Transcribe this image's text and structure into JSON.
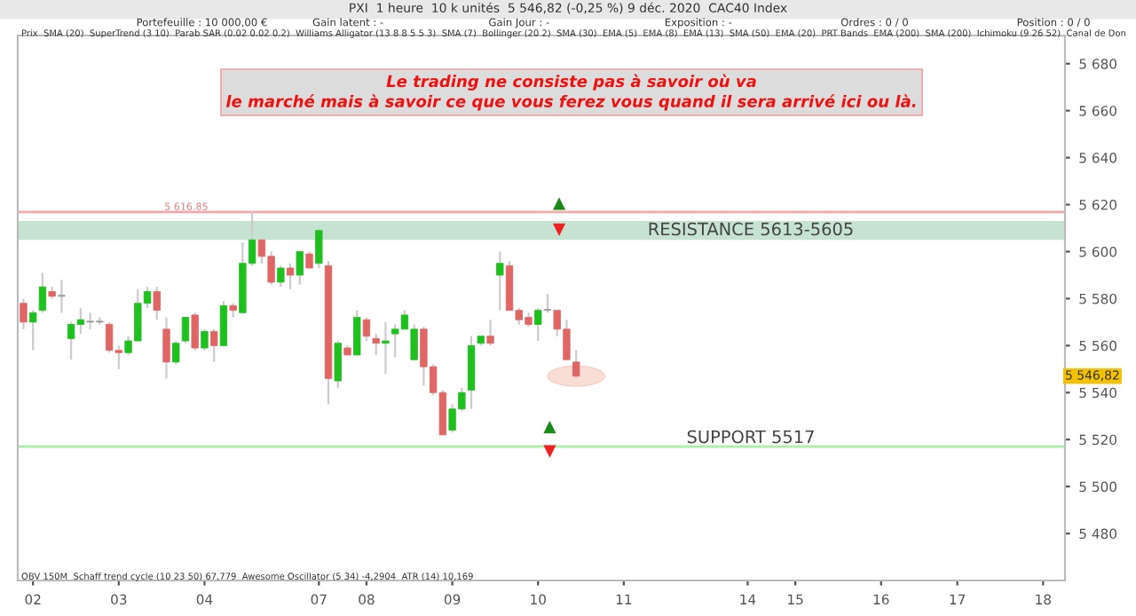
{
  "chart_data": {
    "type": "candlestick",
    "title": "PXI  1 heure  10 k unités  5 546,82 (-0,25 %) 9 déc. 2020  CAC40 Index",
    "categories": [
      null,
      "02",
      null,
      null,
      null,
      null,
      null,
      null,
      null,
      null,
      "03",
      null,
      null,
      null,
      null,
      null,
      null,
      null,
      null,
      "04",
      null,
      null,
      null,
      null,
      null,
      null,
      null,
      null,
      null,
      null,
      null,
      "07",
      null,
      null,
      null,
      null,
      "08",
      null,
      null,
      null,
      null,
      null,
      null,
      null,
      null,
      "09",
      null,
      null,
      null,
      null,
      null,
      null,
      null,
      null,
      "10",
      null,
      null,
      null,
      null,
      null,
      null,
      null,
      null,
      "11",
      null,
      null,
      null,
      null,
      null,
      null,
      null,
      null,
      null,
      null,
      null,
      null,
      "14",
      null,
      null,
      null,
      null,
      "15",
      null,
      null,
      null,
      null,
      null,
      null,
      null,
      null,
      "16",
      null,
      null,
      null,
      null,
      null,
      null,
      null,
      "17",
      null,
      null,
      null,
      null,
      null,
      null,
      null,
      null,
      "18",
      null,
      null
    ],
    "ohlc": [
      [
        5578,
        5580,
        5567,
        5570
      ],
      [
        5570,
        5575,
        5558,
        5574
      ],
      [
        5575,
        5591,
        5574,
        5585
      ],
      [
        5583,
        5585,
        5580,
        5581
      ],
      [
        5581,
        5588,
        5574,
        5581
      ],
      [
        5563,
        5570,
        5554,
        5569
      ],
      [
        5569,
        5576,
        5565,
        5571
      ],
      [
        5570,
        5574,
        5567,
        5570
      ],
      [
        5570,
        5572,
        5569,
        5570
      ],
      [
        5569,
        5570,
        5557,
        5558
      ],
      [
        5558,
        5560,
        5550,
        5557
      ],
      [
        5557,
        5564,
        5556,
        5562
      ],
      [
        5562,
        5584,
        5562,
        5578
      ],
      [
        5578,
        5585,
        5576,
        5583
      ],
      [
        5583,
        5585,
        5571,
        5575
      ],
      [
        5567,
        5572,
        5546,
        5553
      ],
      [
        5553,
        5562,
        5552,
        5561
      ],
      [
        5562,
        5572,
        5561,
        5572
      ],
      [
        5573,
        5574,
        5558,
        5559
      ],
      [
        5559,
        5567,
        5558,
        5566
      ],
      [
        5566,
        5567,
        5553,
        5560
      ],
      [
        5560,
        5579,
        5560,
        5577
      ],
      [
        5577,
        5578,
        5572,
        5575
      ],
      [
        5574,
        5604,
        5574,
        5595
      ],
      [
        5595,
        5617,
        5594,
        5605
      ],
      [
        5605,
        5605,
        5595,
        5598
      ],
      [
        5598,
        5600,
        5586,
        5587
      ],
      [
        5587,
        5594,
        5585,
        5593
      ],
      [
        5593,
        5595,
        5584,
        5590
      ],
      [
        5590,
        5600,
        5586,
        5600
      ],
      [
        5599,
        5600,
        5593,
        5593
      ],
      [
        5595,
        5610,
        5593,
        5609
      ],
      [
        5594,
        5596,
        5535,
        5546
      ],
      [
        5545,
        5562,
        5542,
        5561
      ],
      [
        5559,
        5560,
        5556,
        5556
      ],
      [
        5556,
        5575,
        5556,
        5572
      ],
      [
        5571,
        5572,
        5562,
        5564
      ],
      [
        5563,
        5565,
        5556,
        5561
      ],
      [
        5561,
        5570,
        5548,
        5562
      ],
      [
        5565,
        5569,
        5555,
        5567
      ],
      [
        5567,
        5575,
        5567,
        5573
      ],
      [
        5554,
        5569,
        5554,
        5567
      ],
      [
        5567,
        5568,
        5543,
        5551
      ],
      [
        5551,
        5552,
        5539,
        5540
      ],
      [
        5540,
        5541,
        5522,
        5522
      ],
      [
        5524,
        5535,
        5523,
        5533
      ],
      [
        5533,
        5542,
        5532,
        5540
      ],
      [
        5541,
        5564,
        5533,
        5560
      ],
      [
        5561,
        5564,
        5560,
        5564
      ],
      [
        5564,
        5571,
        5560,
        5561
      ],
      [
        5590,
        5600,
        5575,
        5595
      ],
      [
        5594,
        5596,
        5575,
        5575
      ],
      [
        5575,
        5576,
        5569,
        5571
      ],
      [
        5572,
        5574,
        5568,
        5569
      ],
      [
        5569,
        5576,
        5562,
        5575
      ],
      [
        5575,
        5582,
        5574,
        5575
      ],
      [
        5575,
        5575,
        5564,
        5567
      ],
      [
        5567,
        5571,
        5554,
        5554
      ],
      [
        5553,
        5558,
        5546,
        5547
      ],
      null,
      null,
      null,
      null,
      null,
      null,
      null,
      null,
      null,
      null,
      null,
      null,
      null,
      null,
      null,
      null,
      null,
      null,
      null,
      null,
      null,
      null,
      null,
      null,
      null,
      null,
      null,
      null,
      null,
      null,
      null,
      null,
      null,
      null,
      null,
      null,
      null,
      null,
      null,
      null,
      null,
      null,
      null,
      null,
      null,
      null,
      null,
      null,
      null,
      null,
      null
    ],
    "colors": [
      "#e06666",
      "#1fbf1f",
      "#1fbf1f",
      "#e06666",
      "#999999",
      "#1fbf1f",
      "#1fbf1f",
      "#999999",
      "#999999",
      "#e06666",
      "#e06666",
      "#1fbf1f",
      "#1fbf1f",
      "#1fbf1f",
      "#e06666",
      "#e06666",
      "#1fbf1f",
      "#1fbf1f",
      "#e06666",
      "#1fbf1f",
      "#e06666",
      "#1fbf1f",
      "#e06666",
      "#1fbf1f",
      "#1fbf1f",
      "#e06666",
      "#e06666",
      "#1fbf1f",
      "#e06666",
      "#1fbf1f",
      "#e06666",
      "#1fbf1f",
      "#e06666",
      "#1fbf1f",
      "#e06666",
      "#1fbf1f",
      "#e06666",
      "#e06666",
      "#1fbf1f",
      "#1fbf1f",
      "#1fbf1f",
      "#1fbf1f",
      "#e06666",
      "#e06666",
      "#e06666",
      "#1fbf1f",
      "#1fbf1f",
      "#1fbf1f",
      "#1fbf1f",
      "#e06666",
      "#1fbf1f",
      "#e06666",
      "#e06666",
      "#e06666",
      "#1fbf1f",
      "#999999",
      "#e06666",
      "#e06666",
      "#e06666",
      null,
      null,
      null,
      null,
      null,
      null,
      null,
      null,
      null,
      null,
      null,
      null,
      null,
      null,
      null,
      null,
      null,
      null,
      null,
      null,
      null,
      null,
      null,
      null,
      null,
      null,
      null,
      null,
      null,
      null,
      null,
      null,
      null,
      null,
      null,
      null,
      null,
      null,
      null,
      null,
      null,
      null,
      null,
      null,
      null,
      null,
      null,
      null,
      null,
      null,
      null
    ],
    "ylim": [
      5460,
      5692
    ],
    "yticks": [
      {
        "value": 5480,
        "label": "5 480"
      },
      {
        "value": 5500,
        "label": "5 500"
      },
      {
        "value": 5520,
        "label": "5 520"
      },
      {
        "value": 5540,
        "label": "5 540"
      },
      {
        "value": 5560,
        "label": "5 560"
      },
      {
        "value": 5580,
        "label": "5 580"
      },
      {
        "value": 5600,
        "label": "5 600"
      },
      {
        "value": 5620,
        "label": "5 620"
      },
      {
        "value": 5640,
        "label": "5 640"
      },
      {
        "value": 5660,
        "label": "5 660"
      },
      {
        "value": 5680,
        "label": "5 680"
      }
    ],
    "bands": [
      {
        "axis": "y",
        "from": 5605,
        "to": 5613,
        "label": "RESISTANCE 5613-5605",
        "color": "#c6e3d1"
      }
    ],
    "ref_lines": [
      {
        "axis": "y",
        "value": 5616.85,
        "label": "5 616.85",
        "color": "#f4aaaa"
      },
      {
        "axis": "y",
        "value": 5517,
        "label": "SUPPORT 5517",
        "color": "#a8f0a8"
      }
    ],
    "annotations": [
      "Portefeuille : 10 000,00 €",
      "Gain latent : -",
      "Gain Jour : -",
      "Exposition : -",
      "Ordres : 0 / 0",
      "Position : 0 / 0",
      "Prix  SMA (20)  SuperTrend (3 10)  Parab SAR (0.02 0.02 0.2)  Williams Alligator (13 8 8 5 5 3)  SMA (7)  Bollinger (20 2)  SMA (30)  EMA (5)  EMA (8)  EMA (13)  SMA (50)  EMA (20)  PRT Bands  EMA (200)  SMA (200)  Ichimoku (9 26 52)  Canal de Don",
      "OBV 150M  Schaff trend cycle (10 23 50) 67,779  Awesome Oscillator (5 34) -4,2904  ATR (14) 10,169",
      "Le trading ne consiste pas à savoir où va\nle marché mais à savoir ce que vous ferez vous quand il sera arrivé ici ou là.",
      "5 546,82"
    ],
    "grid": false
  }
}
